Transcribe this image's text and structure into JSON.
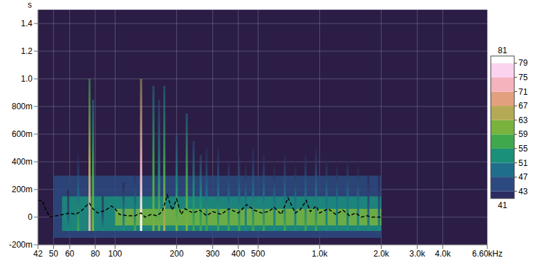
{
  "chart_data": {
    "type": "spectrogram",
    "y_label": "s",
    "log": "x",
    "grid": true,
    "tick_labels": true,
    "xlim": [
      42,
      6600
    ],
    "xticks": [
      42,
      50,
      60,
      80,
      100,
      200,
      300,
      400,
      500,
      {
        "value": 1000,
        "label": "1.0k"
      },
      {
        "value": 2000,
        "label": "2.0k"
      },
      {
        "value": 3000,
        "label": "3.0k"
      },
      {
        "value": 4000,
        "label": "4.0k"
      },
      {
        "value": 6600,
        "label": "6.60kHz"
      }
    ],
    "ylim": [
      -0.2,
      1.5
    ],
    "yticks": [
      {
        "value": -0.2,
        "label": "-200m"
      },
      0,
      {
        "value": 0.2,
        "label": "200m"
      },
      {
        "value": 0.4,
        "label": "400m"
      },
      {
        "value": 0.6,
        "label": "600m"
      },
      {
        "value": 0.8,
        "label": "800m"
      },
      {
        "value": 1.0,
        "label": "1.0"
      },
      1.2,
      1.4
    ],
    "colorbar": {
      "range": [
        41,
        81
      ],
      "ticks": [
        41,
        43,
        47,
        51,
        55,
        59,
        63,
        67,
        71,
        75,
        79,
        81
      ],
      "colors": [
        "#2b1d45",
        "#2c2c63",
        "#2d4a80",
        "#1f6f8c",
        "#1a8f7a",
        "#3fa84d",
        "#79b33e",
        "#b4aa55",
        "#e3a07e",
        "#f5b3be",
        "#fcd3ee",
        "#ffffff"
      ]
    },
    "floor": [
      {
        "from": 50,
        "to": 2000,
        "start": -0.15,
        "end": 0.3,
        "level": 47
      },
      {
        "from": 55,
        "to": 2000,
        "start": -0.1,
        "end": 0.15,
        "level": 55
      },
      {
        "from": 100,
        "to": 2000,
        "start": -0.06,
        "end": 0.06,
        "level": 63
      }
    ],
    "ridges": [
      {
        "freq": 59,
        "start": -0.1,
        "end": 0.2,
        "level": 52
      },
      {
        "freq": 66,
        "start": -0.1,
        "end": 0.45,
        "level": 56
      },
      {
        "freq": 75,
        "start": -0.1,
        "end": 1.0,
        "level": 72
      },
      {
        "freq": 78,
        "start": -0.1,
        "end": 0.85,
        "level": 62
      },
      {
        "freq": 87,
        "start": -0.1,
        "end": 0.15,
        "level": 52
      },
      {
        "freq": 110,
        "start": -0.1,
        "end": 0.25,
        "level": 54
      },
      {
        "freq": 125,
        "start": -0.1,
        "end": 0.3,
        "level": 56
      },
      {
        "freq": 134,
        "start": -0.1,
        "end": 1.0,
        "level": 80
      },
      {
        "freq": 154,
        "start": -0.1,
        "end": 0.95,
        "level": 63
      },
      {
        "freq": 164,
        "start": -0.1,
        "end": 0.85,
        "level": 61
      },
      {
        "freq": 174,
        "start": -0.1,
        "end": 0.95,
        "level": 64
      },
      {
        "freq": 200,
        "start": -0.1,
        "end": 0.6,
        "level": 60
      },
      {
        "freq": 224,
        "start": -0.1,
        "end": 0.75,
        "level": 62
      },
      {
        "freq": 242,
        "start": -0.1,
        "end": 0.55,
        "level": 58
      },
      {
        "freq": 262,
        "start": -0.1,
        "end": 0.45,
        "level": 58
      },
      {
        "freq": 280,
        "start": -0.1,
        "end": 0.5,
        "level": 57
      },
      {
        "freq": 319,
        "start": -0.1,
        "end": 0.5,
        "level": 57
      },
      {
        "freq": 359,
        "start": -0.1,
        "end": 0.4,
        "level": 56
      },
      {
        "freq": 404,
        "start": -0.1,
        "end": 0.45,
        "level": 57
      },
      {
        "freq": 435,
        "start": -0.1,
        "end": 0.4,
        "level": 55
      },
      {
        "freq": 473,
        "start": -0.1,
        "end": 0.5,
        "level": 57
      },
      {
        "freq": 533,
        "start": -0.1,
        "end": 0.45,
        "level": 56
      },
      {
        "freq": 601,
        "start": -0.1,
        "end": 0.4,
        "level": 55
      },
      {
        "freq": 675,
        "start": -0.1,
        "end": 0.45,
        "level": 56
      },
      {
        "freq": 760,
        "start": -0.1,
        "end": 0.4,
        "level": 55
      },
      {
        "freq": 853,
        "start": -0.1,
        "end": 0.45,
        "level": 56
      },
      {
        "freq": 960,
        "start": -0.1,
        "end": 0.5,
        "level": 56
      },
      {
        "freq": 1080,
        "start": -0.1,
        "end": 0.45,
        "level": 55
      },
      {
        "freq": 1215,
        "start": -0.1,
        "end": 0.4,
        "level": 54
      },
      {
        "freq": 1370,
        "start": -0.1,
        "end": 0.45,
        "level": 55
      },
      {
        "freq": 1540,
        "start": -0.1,
        "end": 0.4,
        "level": 54
      },
      {
        "freq": 1730,
        "start": -0.1,
        "end": 0.35,
        "level": 53
      },
      {
        "freq": 1950,
        "start": -0.1,
        "end": 0.3,
        "level": 52
      }
    ],
    "x": [
      42,
      44,
      46,
      48,
      52,
      56,
      60,
      64,
      68,
      72,
      75,
      78,
      82,
      90,
      96,
      100,
      105,
      115,
      125,
      134,
      140,
      150,
      160,
      170,
      180,
      190,
      200,
      210,
      220,
      240,
      260,
      280,
      300,
      330,
      360,
      400,
      440,
      480,
      520,
      560,
      600,
      650,
      700,
      760,
      800,
      860,
      900,
      960,
      1000,
      1100,
      1200,
      1300,
      1400,
      1500,
      1600,
      1700,
      1800,
      2000
    ],
    "series": [
      {
        "color": "#000000",
        "line_style": "dashed",
        "marker": "none",
        "values": [
          0.12,
          0.12,
          0.05,
          0.0,
          0.01,
          0.02,
          0.03,
          0.02,
          0.04,
          0.08,
          0.1,
          0.06,
          0.03,
          0.05,
          0.08,
          0.06,
          0.02,
          0.01,
          0.01,
          0.03,
          0.0,
          0.02,
          0.01,
          0.04,
          0.16,
          0.05,
          0.13,
          0.02,
          0.06,
          0.03,
          0.05,
          0.01,
          0.04,
          0.02,
          0.06,
          0.03,
          0.09,
          0.05,
          0.03,
          0.04,
          0.07,
          0.02,
          0.14,
          0.03,
          0.05,
          0.12,
          0.04,
          0.08,
          0.03,
          0.06,
          0.02,
          0.05,
          0.01,
          0.03,
          0.0,
          0.01,
          0.0,
          0.0
        ]
      }
    ]
  }
}
